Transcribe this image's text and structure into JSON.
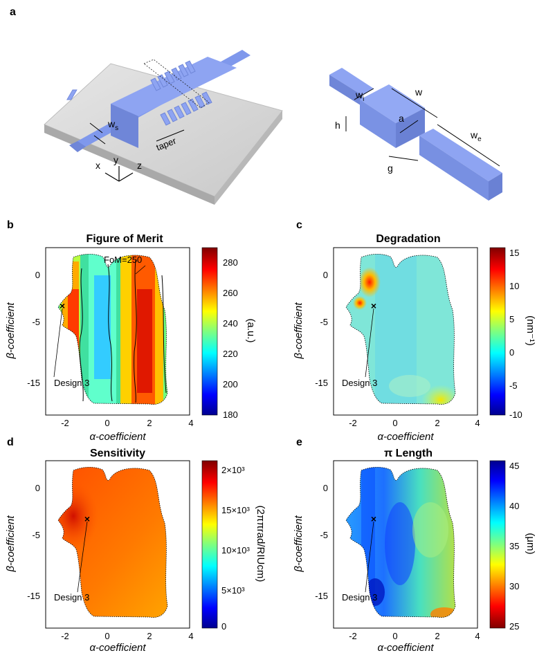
{
  "figure": {
    "panel_a": {
      "label": "a",
      "left_annotations": [
        "w",
        "s",
        "taper",
        "x",
        "y",
        "z"
      ],
      "right_annotations": {
        "wi_main": "w",
        "wi_sub": "i",
        "w": "w",
        "a": "a",
        "h": "h",
        "we_main": "w",
        "we_sub": "e",
        "g": "g"
      }
    },
    "panels": [
      {
        "label": "b",
        "title": "Figure of Merit",
        "colorbar": {
          "ticks": [
            "280",
            "260",
            "240",
            "220",
            "200",
            "180"
          ],
          "unit": "(a.u.)",
          "colormap": "jet"
        },
        "annotations": {
          "contour_label": "FoM=250",
          "design": "Design 3"
        }
      },
      {
        "label": "c",
        "title": "Degradation",
        "colorbar": {
          "ticks": [
            "15",
            "10",
            "5",
            "0",
            "-5",
            "-10"
          ],
          "unit": "(nm⁻¹)",
          "colormap": "jet"
        },
        "annotations": {
          "design": "Design 3"
        }
      },
      {
        "label": "d",
        "title": "Sensitivity",
        "colorbar": {
          "ticks": [
            "2×10³",
            "15×10³",
            "10×10³",
            "5×10³",
            "0"
          ],
          "unit": "(2ππrad/RIUcm)",
          "colormap": "jet"
        },
        "annotations": {
          "design": "Design 3"
        }
      },
      {
        "label": "e",
        "title": "π Length",
        "colorbar": {
          "ticks": [
            "45",
            "40",
            "35",
            "30",
            "25"
          ],
          "unit": "(μm)",
          "colormap": "jet_reversed"
        },
        "annotations": {
          "design": "Design 3"
        }
      }
    ],
    "axes": {
      "xlabel": "α-coefficient",
      "ylabel": "β-coefficient",
      "xticks": [
        "-2",
        "0",
        "2",
        "4"
      ],
      "yticks": [
        "0",
        "-5",
        "-15"
      ]
    }
  },
  "chart_data": [
    {
      "type": "heatmap",
      "title": "Figure of Merit",
      "xlabel": "α-coefficient",
      "ylabel": "β-coefficient",
      "xlim": [
        -3,
        4
      ],
      "ylim": [
        -20,
        3
      ],
      "colorbar_range": [
        180,
        290
      ],
      "design_point": {
        "x": -1.1,
        "y": -3.3,
        "label": "Design 3"
      }
    },
    {
      "type": "heatmap",
      "title": "Degradation",
      "xlabel": "α-coefficient",
      "ylabel": "β-coefficient",
      "xlim": [
        -3,
        4
      ],
      "ylim": [
        -20,
        3
      ],
      "colorbar_range": [
        -10,
        15
      ],
      "design_point": {
        "x": -1.1,
        "y": -3.3,
        "label": "Design 3"
      }
    },
    {
      "type": "heatmap",
      "title": "Sensitivity",
      "xlabel": "α-coefficient",
      "ylabel": "β-coefficient",
      "xlim": [
        -3,
        4
      ],
      "ylim": [
        -20,
        3
      ],
      "colorbar_range": [
        0,
        21000
      ],
      "design_point": {
        "x": -1.1,
        "y": -3.3,
        "label": "Design 3"
      }
    },
    {
      "type": "heatmap",
      "title": "π Length",
      "xlabel": "α-coefficient",
      "ylabel": "β-coefficient",
      "xlim": [
        -3,
        4
      ],
      "ylim": [
        -20,
        3
      ],
      "colorbar_range": [
        25,
        45
      ],
      "design_point": {
        "x": -1.1,
        "y": -3.3,
        "label": "Design 3"
      }
    }
  ]
}
